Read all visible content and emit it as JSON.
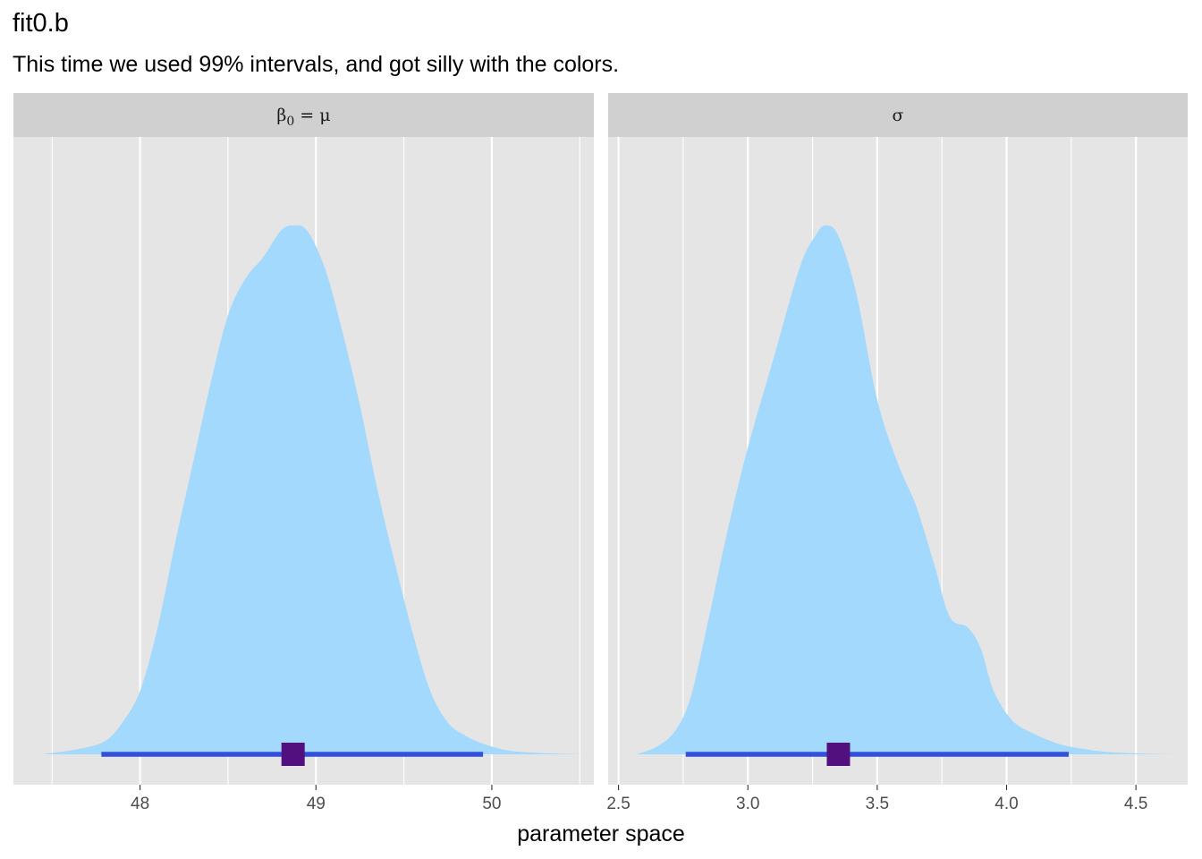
{
  "title": "fit0.b",
  "subtitle": "This time we used 99% intervals, and got silly with the colors.",
  "colors": {
    "panel_bg": "#e5e5e5",
    "strip_bg": "#d0d0d0",
    "grid": "#ffffff",
    "density_fill": "#a3d9fc",
    "interval": "#3550d8",
    "point": "#52107e"
  },
  "chart_data": {
    "type": "area",
    "xlabel": "parameter space",
    "interval_level": "99%",
    "panels": [
      {
        "strip_label_main": "β",
        "strip_label_sub": "0",
        "strip_label_rest": " = μ",
        "xlim": [
          47.28,
          50.58
        ],
        "ticks": [
          48,
          49,
          50
        ],
        "tick_labels": [
          "48",
          "49",
          "50"
        ],
        "minor_ticks": [
          47.5,
          48.5,
          49.5,
          50.5
        ],
        "point_estimate": 48.87,
        "interval": [
          47.78,
          49.95
        ],
        "density": {
          "x": [
            47.44,
            47.65,
            47.8,
            47.9,
            48.0,
            48.1,
            48.2,
            48.3,
            48.4,
            48.5,
            48.6,
            48.7,
            48.8,
            48.87,
            48.95,
            49.05,
            49.15,
            49.25,
            49.35,
            49.45,
            49.55,
            49.65,
            49.75,
            49.85,
            49.95,
            50.1,
            50.3,
            50.52
          ],
          "y": [
            0.0,
            0.01,
            0.025,
            0.06,
            0.12,
            0.24,
            0.4,
            0.55,
            0.7,
            0.83,
            0.9,
            0.94,
            0.99,
            1.0,
            0.99,
            0.92,
            0.8,
            0.66,
            0.5,
            0.36,
            0.23,
            0.12,
            0.06,
            0.035,
            0.02,
            0.007,
            0.002,
            0.0
          ]
        }
      },
      {
        "strip_label_main": "σ",
        "strip_label_sub": "",
        "strip_label_rest": "",
        "xlim": [
          2.46,
          4.7
        ],
        "ticks": [
          2.5,
          3.0,
          3.5,
          4.0,
          4.5
        ],
        "tick_labels": [
          "2.5",
          "3.0",
          "3.5",
          "4.0",
          "4.5"
        ],
        "minor_ticks": [
          2.75,
          3.25,
          3.75,
          4.25
        ],
        "point_estimate": 3.35,
        "interval": [
          2.76,
          4.24
        ],
        "density": {
          "x": [
            2.57,
            2.65,
            2.72,
            2.78,
            2.85,
            2.92,
            3.0,
            3.1,
            3.2,
            3.26,
            3.3,
            3.35,
            3.42,
            3.5,
            3.58,
            3.65,
            3.72,
            3.78,
            3.85,
            3.9,
            3.95,
            4.02,
            4.1,
            4.2,
            4.3,
            4.4,
            4.55,
            4.67
          ],
          "y": [
            0.0,
            0.015,
            0.045,
            0.11,
            0.26,
            0.42,
            0.58,
            0.75,
            0.92,
            0.98,
            1.0,
            0.98,
            0.87,
            0.67,
            0.55,
            0.47,
            0.36,
            0.26,
            0.24,
            0.2,
            0.12,
            0.065,
            0.04,
            0.02,
            0.01,
            0.004,
            0.001,
            0.0
          ]
        }
      }
    ]
  }
}
